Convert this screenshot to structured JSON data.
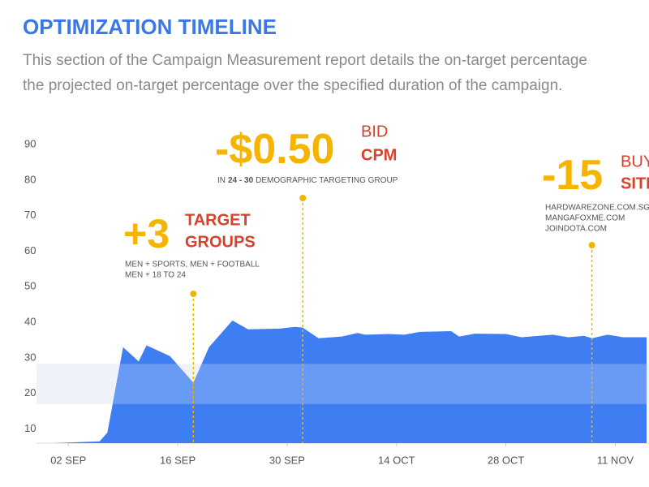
{
  "chart_data": {
    "type": "area",
    "title": "OPTIMIZATION TIMELINE",
    "subtitle_lines": [
      "This section of the Campaign Measurement report details the on-target percentage",
      "the projected on-target percentage over the specified duration of the campaign."
    ],
    "x": [
      "08-31",
      "09-06",
      "09-07",
      "09-09",
      "09-11",
      "09-12",
      "09-15",
      "09-18",
      "09-20",
      "09-23",
      "09-25",
      "09-29",
      "10-01",
      "10-02",
      "10-04",
      "10-07",
      "10-09",
      "10-10",
      "10-13",
      "10-15",
      "10-17",
      "10-21",
      "10-22",
      "10-24",
      "10-28",
      "10-30",
      "11-03",
      "11-05",
      "11-07",
      "11-08",
      "11-10",
      "11-12",
      "11-15"
    ],
    "values": [
      6,
      6.5,
      9,
      33,
      29,
      33.5,
      30.5,
      23,
      33,
      40.5,
      38,
      38.2,
      38.7,
      38.5,
      35.5,
      36,
      37,
      36.5,
      36.7,
      36.5,
      37.3,
      37.5,
      36,
      36.8,
      36.7,
      35.8,
      36.5,
      35.8,
      36.2,
      35.5,
      36.5,
      35.8,
      35.8
    ],
    "color": "#3f7ef2",
    "target_band": [
      17,
      28.3
    ],
    "xlim": [
      "08-31",
      "11-15"
    ],
    "xticks": [
      {
        "value": "09-02",
        "label": "02 SEP"
      },
      {
        "value": "09-16",
        "label": "16 SEP"
      },
      {
        "value": "09-30",
        "label": "30 SEP"
      },
      {
        "value": "10-14",
        "label": "14 OCT"
      },
      {
        "value": "10-28",
        "label": "28 OCT"
      },
      {
        "value": "11-11",
        "label": "11 NOV"
      }
    ],
    "ylim": [
      6,
      94
    ],
    "yticks": [
      10,
      20,
      30,
      40,
      50,
      60,
      70,
      80,
      90
    ],
    "grid": false,
    "annotations": [
      {
        "x": "09-18",
        "headline": "+3",
        "label_lines": [
          "TARGET",
          "GROUPS"
        ],
        "details": [
          "MEN + SPORTS, MEN + FOOTBALL",
          "MEN + 18 TO 24"
        ]
      },
      {
        "x": "10-02",
        "headline": "-$0.50",
        "label_lines": [
          "BID",
          "CPM"
        ],
        "details": [
          [
            "IN",
            "24 - 30",
            "DEMOGRAPHIC TARGETING GROUP"
          ]
        ]
      },
      {
        "x": "11-08",
        "headline": "-15",
        "label_lines": [
          "BUY",
          "SITES"
        ],
        "details": [
          "HARDWAREZONE.COM.SG",
          "MANGAFOXME.COM",
          "JOINDOTA.COM"
        ]
      }
    ]
  }
}
